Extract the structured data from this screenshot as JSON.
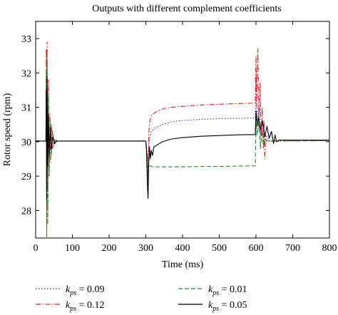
{
  "chart_data": {
    "type": "line",
    "title": "Outputs with different complement coefficients",
    "xlabel": "Time (ms)",
    "ylabel": "Rotor speed (rpm)",
    "xlim": [
      0,
      800
    ],
    "ylim": [
      27.2,
      33.5
    ],
    "xticks": [
      0,
      100,
      200,
      300,
      400,
      500,
      600,
      700,
      800
    ],
    "yticks": [
      28,
      29,
      30,
      31,
      32,
      33
    ],
    "grid": false,
    "legend_position": "bottom",
    "series": [
      {
        "name": "k_ps = 0.09",
        "legend_symbol": "k",
        "legend_subscript": "ps",
        "legend_value": " = 0.09",
        "color": "#1f2fb4",
        "dash": "1.5,2.5",
        "points": [
          [
            0,
            30.02
          ],
          [
            28,
            30.02
          ],
          [
            29,
            31.8
          ],
          [
            30,
            27.5
          ],
          [
            31,
            32.4
          ],
          [
            33,
            28.8
          ],
          [
            35,
            31.2
          ],
          [
            37,
            29.4
          ],
          [
            40,
            30.5
          ],
          [
            43,
            29.7
          ],
          [
            46,
            30.3
          ],
          [
            50,
            29.9
          ],
          [
            55,
            30.05
          ],
          [
            60,
            30.02
          ],
          [
            100,
            30.02
          ],
          [
            200,
            30.02
          ],
          [
            300,
            30.02
          ],
          [
            304,
            29.6
          ],
          [
            306,
            28.6
          ],
          [
            308,
            29.9
          ],
          [
            310,
            30.1
          ],
          [
            315,
            30.3
          ],
          [
            325,
            30.4
          ],
          [
            345,
            30.5
          ],
          [
            370,
            30.58
          ],
          [
            400,
            30.62
          ],
          [
            450,
            30.65
          ],
          [
            500,
            30.67
          ],
          [
            550,
            30.68
          ],
          [
            598,
            30.69
          ],
          [
            600,
            32.0
          ],
          [
            603,
            30.6
          ],
          [
            607,
            30.9
          ],
          [
            612,
            30.2
          ],
          [
            617,
            30.6
          ],
          [
            622,
            29.9
          ],
          [
            628,
            30.2
          ],
          [
            635,
            30.02
          ],
          [
            800,
            30.03
          ]
        ]
      },
      {
        "name": "k_ps = 0.12",
        "legend_symbol": "k",
        "legend_subscript": "ps",
        "legend_value": " = 0.12",
        "color": "#e02020",
        "dash": "7,2.5,1.5,2.5",
        "points": [
          [
            0,
            30.02
          ],
          [
            28,
            30.02
          ],
          [
            29,
            32.7
          ],
          [
            30,
            27.4
          ],
          [
            31,
            32.9
          ],
          [
            33,
            28.0
          ],
          [
            35,
            31.8
          ],
          [
            37,
            29.0
          ],
          [
            39,
            30.8
          ],
          [
            41,
            29.4
          ],
          [
            43,
            30.5
          ],
          [
            46,
            29.8
          ],
          [
            50,
            30.05
          ],
          [
            55,
            30.02
          ],
          [
            100,
            30.02
          ],
          [
            200,
            30.02
          ],
          [
            300,
            30.02
          ],
          [
            304,
            29.6
          ],
          [
            306,
            28.7
          ],
          [
            308,
            30.2
          ],
          [
            310,
            30.55
          ],
          [
            315,
            30.75
          ],
          [
            325,
            30.85
          ],
          [
            345,
            30.95
          ],
          [
            370,
            31.0
          ],
          [
            400,
            31.03
          ],
          [
            450,
            31.07
          ],
          [
            500,
            31.09
          ],
          [
            550,
            31.11
          ],
          [
            598,
            31.12
          ],
          [
            600,
            32.5
          ],
          [
            602,
            31.0
          ],
          [
            605,
            32.7
          ],
          [
            608,
            30.4
          ],
          [
            611,
            31.7
          ],
          [
            614,
            30.0
          ],
          [
            617,
            31.0
          ],
          [
            620,
            29.8
          ],
          [
            622,
            30.6
          ],
          [
            624,
            29.5
          ],
          [
            626,
            30.1
          ],
          [
            628,
            30.02
          ],
          [
            800,
            30.03
          ]
        ]
      },
      {
        "name": "k_ps = 0.01",
        "legend_symbol": "k",
        "legend_subscript": "ps",
        "legend_value": " = 0.01",
        "color": "#1f8f2f",
        "dash": "6,3",
        "points": [
          [
            0,
            30.02
          ],
          [
            28,
            30.02
          ],
          [
            29,
            32.1
          ],
          [
            30,
            27.2
          ],
          [
            31,
            32.6
          ],
          [
            33,
            27.6
          ],
          [
            35,
            31.4
          ],
          [
            37,
            29.1
          ],
          [
            40,
            30.6
          ],
          [
            43,
            29.6
          ],
          [
            46,
            30.3
          ],
          [
            50,
            29.9
          ],
          [
            55,
            30.02
          ],
          [
            100,
            30.02
          ],
          [
            200,
            30.02
          ],
          [
            300,
            30.02
          ],
          [
            304,
            29.5
          ],
          [
            306,
            28.5
          ],
          [
            308,
            29.4
          ],
          [
            311,
            29.3
          ],
          [
            320,
            29.27
          ],
          [
            350,
            29.27
          ],
          [
            400,
            29.27
          ],
          [
            450,
            29.28
          ],
          [
            500,
            29.28
          ],
          [
            550,
            29.29
          ],
          [
            598,
            29.3
          ],
          [
            600,
            30.5
          ],
          [
            603,
            30.2
          ],
          [
            608,
            30.6
          ],
          [
            612,
            29.8
          ],
          [
            616,
            30.3
          ],
          [
            620,
            29.9
          ],
          [
            625,
            30.1
          ],
          [
            630,
            30.02
          ],
          [
            800,
            30.03
          ]
        ]
      },
      {
        "name": "k_ps = 0.05",
        "legend_symbol": "k",
        "legend_subscript": "ps",
        "legend_value": " = 0.05",
        "color": "#000000",
        "dash": "",
        "points": [
          [
            0,
            30.02
          ],
          [
            28,
            30.02
          ],
          [
            29,
            31.5
          ],
          [
            30,
            28.3
          ],
          [
            31,
            31.9
          ],
          [
            33,
            29.3
          ],
          [
            35,
            30.8
          ],
          [
            37,
            29.6
          ],
          [
            40,
            30.4
          ],
          [
            43,
            29.8
          ],
          [
            47,
            30.15
          ],
          [
            52,
            29.95
          ],
          [
            58,
            30.02
          ],
          [
            100,
            30.02
          ],
          [
            200,
            30.02
          ],
          [
            300,
            30.02
          ],
          [
            302,
            29.7
          ],
          [
            304,
            28.8
          ],
          [
            306,
            28.35
          ],
          [
            308,
            29.4
          ],
          [
            310,
            29.85
          ],
          [
            312,
            29.5
          ],
          [
            315,
            29.75
          ],
          [
            318,
            29.6
          ],
          [
            322,
            29.85
          ],
          [
            330,
            29.9
          ],
          [
            345,
            30.0
          ],
          [
            370,
            30.08
          ],
          [
            400,
            30.12
          ],
          [
            450,
            30.16
          ],
          [
            500,
            30.18
          ],
          [
            550,
            30.2
          ],
          [
            598,
            30.21
          ],
          [
            600,
            30.9
          ],
          [
            603,
            30.45
          ],
          [
            607,
            30.7
          ],
          [
            612,
            30.35
          ],
          [
            618,
            30.6
          ],
          [
            624,
            30.15
          ],
          [
            630,
            30.45
          ],
          [
            636,
            30.1
          ],
          [
            642,
            30.3
          ],
          [
            648,
            29.95
          ],
          [
            652,
            30.2
          ],
          [
            656,
            30.0
          ],
          [
            662,
            30.05
          ],
          [
            800,
            30.05
          ]
        ]
      }
    ],
    "legend_layout": [
      [
        0,
        1
      ],
      [
        2,
        3
      ]
    ]
  }
}
